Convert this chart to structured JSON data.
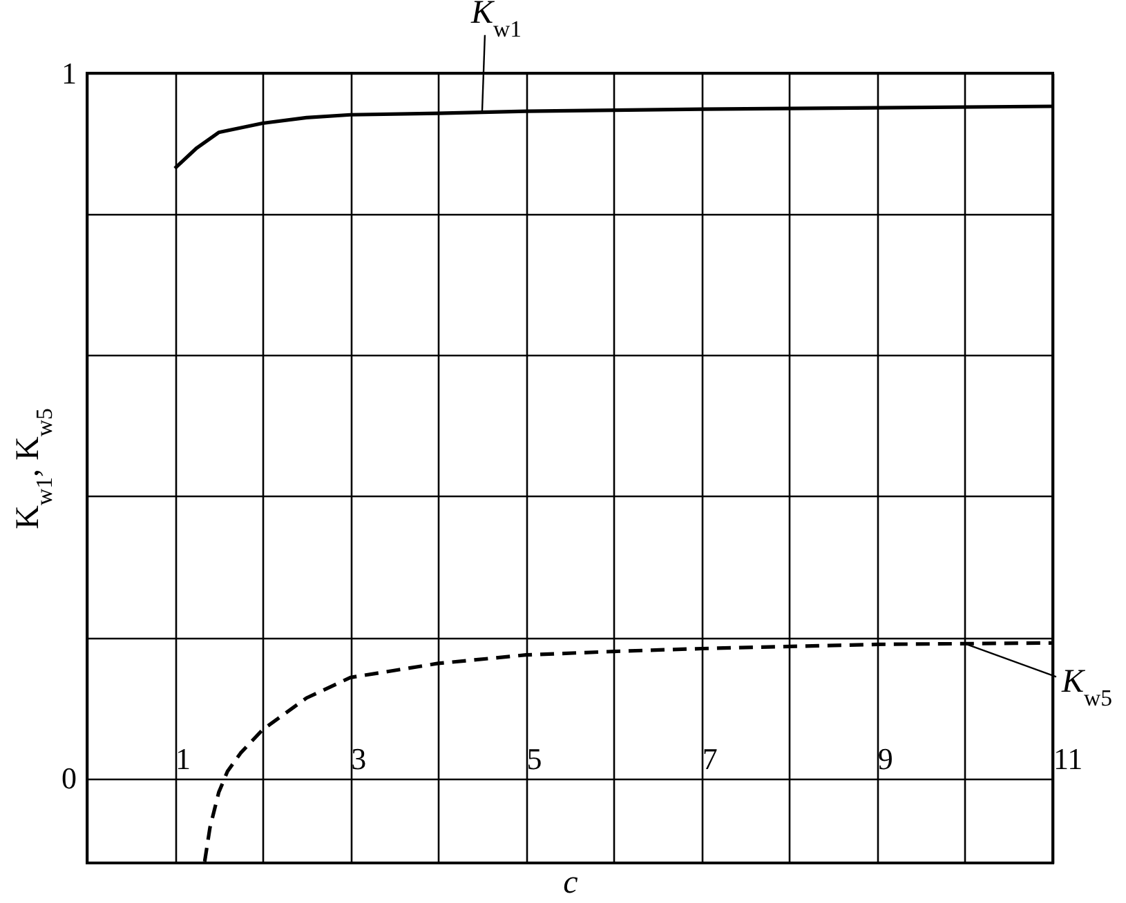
{
  "chart_data": {
    "type": "line",
    "xlabel": "c",
    "ylabel": "K$_{w1}$, K$_{w5}$",
    "xlim": [
      0,
      11
    ],
    "xticks": [
      {
        "value": 0,
        "label": null
      },
      1,
      {
        "value": 2,
        "label": null
      },
      3,
      {
        "value": 4,
        "label": null
      },
      5,
      {
        "value": 6,
        "label": null
      },
      7,
      {
        "value": 8,
        "label": null
      },
      9,
      {
        "value": 10,
        "label": null
      },
      11
    ],
    "ylim": [
      -0.12,
      1
    ],
    "yticks": [
      0,
      {
        "value": 0.2,
        "label": null
      },
      {
        "value": 0.4,
        "label": null
      },
      {
        "value": 0.6,
        "label": null
      },
      {
        "value": 0.8,
        "label": null
      },
      1
    ],
    "grid": true,
    "series": [
      {
        "name": "K$_{w1}$",
        "color": "#000000",
        "line_style": "solid",
        "x": [
          1,
          1.25,
          1.5,
          2,
          2.5,
          3,
          4,
          5,
          7,
          9,
          11
        ],
        "values": [
          0.865,
          0.894,
          0.916,
          0.929,
          0.937,
          0.941,
          0.943,
          0.946,
          0.949,
          0.951,
          0.953
        ]
      },
      {
        "name": "K$_{w5}$",
        "color": "#000000",
        "line_style": "dashed",
        "x": [
          1.34,
          1.4,
          1.5,
          1.6,
          1.75,
          2,
          2.5,
          3,
          4,
          5,
          6,
          7,
          9,
          11
        ],
        "values": [
          -0.118,
          -0.07,
          -0.02,
          0.01,
          0.036,
          0.069,
          0.114,
          0.143,
          0.163,
          0.175,
          0.18,
          0.184,
          0.19,
          0.192
        ]
      }
    ]
  }
}
